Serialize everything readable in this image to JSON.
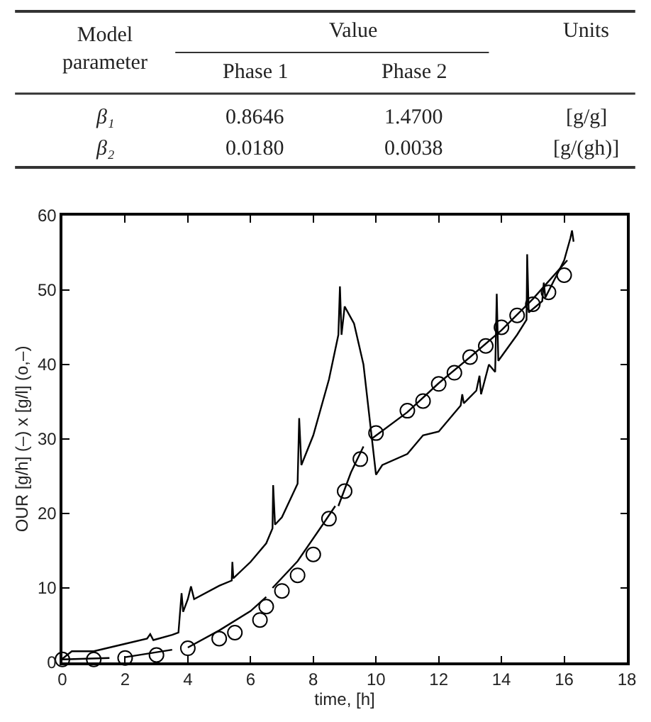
{
  "chart_data": [
    {
      "type": "other",
      "annotations": [
        "Model\nparameter",
        "Value",
        "Units",
        "Phase 1",
        "Phase 2",
        "β₁",
        "0.8646",
        "1.4700",
        "[g/g]",
        "β₂",
        "0.0180",
        "0.0038",
        "[g/(gh)]"
      ]
    },
    {
      "type": "line",
      "xlabel": "time, [h]",
      "ylabel": "OUR [g/h] (–) x [g/l] (o,–)",
      "xlim": [
        0,
        18
      ],
      "xticks": [
        0,
        2,
        4,
        6,
        8,
        10,
        12,
        14,
        16,
        18
      ],
      "ylim": [
        0,
        60
      ],
      "yticks": [
        0,
        10,
        20,
        30,
        40,
        50,
        60
      ],
      "series": [
        {
          "type": "line",
          "color": "#000000",
          "x": [
            0,
            0.3,
            1,
            2,
            2.7,
            2.8,
            2.9,
            3.5,
            3.7,
            3.8,
            3.85,
            4.0,
            4.1,
            4.2,
            5,
            5.4,
            5.42,
            5.45,
            6,
            6.5,
            6.7,
            6.72,
            6.78,
            7,
            7.5,
            7.55,
            7.62,
            8,
            8.5,
            8.8,
            8.85,
            8.9,
            9.0,
            9.3,
            9.6,
            10.0,
            10.2,
            11,
            11.5,
            12,
            12.7,
            12.75,
            12.8,
            13.2,
            13.3,
            13.35,
            13.6,
            13.8,
            13.85,
            13.9,
            14.5,
            14.8,
            14.82,
            14.87,
            15.3,
            15.35,
            15.4,
            16,
            16.2,
            16.25,
            16.3
          ],
          "values": [
            0.5,
            1.5,
            1.5,
            2.5,
            3.2,
            3.8,
            3.0,
            3.7,
            4,
            9.3,
            6.8,
            8.5,
            10.2,
            8.5,
            10.3,
            11,
            13.5,
            11.3,
            13.5,
            16,
            18,
            23.8,
            18.5,
            19.5,
            24,
            32.8,
            26.5,
            30.5,
            38,
            44,
            50.5,
            44,
            47.8,
            45.5,
            40,
            25.2,
            26.5,
            28,
            30.5,
            31,
            34.5,
            36,
            34.8,
            36.5,
            38.5,
            36,
            40,
            39,
            49.5,
            40.5,
            44,
            46,
            54.8,
            47,
            48.5,
            51,
            49,
            54,
            57,
            58,
            56.5
          ]
        },
        {
          "type": "scatter",
          "color": "#000000",
          "marker": "circle",
          "x": [
            0,
            1,
            2,
            3,
            4,
            5,
            5.5,
            6.3,
            6.5,
            7,
            7.5,
            8,
            8.5,
            9,
            9.5,
            10,
            11,
            11.5,
            12,
            12.5,
            13,
            13.5,
            14,
            14.5,
            15,
            15.5,
            16
          ],
          "values": [
            0.4,
            0.4,
            0.6,
            1,
            1.9,
            3.2,
            4,
            5.7,
            7.5,
            9.6,
            11.7,
            14.5,
            19.3,
            23,
            27.3,
            30.8,
            33.8,
            35.1,
            37.4,
            38.9,
            41,
            42.5,
            45,
            46.6,
            48.1,
            49.7,
            52
          ]
        },
        {
          "type": "line",
          "color": "#000000",
          "x": [
            0,
            1.5,
            null,
            2,
            3.5,
            null,
            4,
            5,
            6,
            6.5,
            null,
            6.7,
            7.5,
            8.3,
            8.7,
            null,
            8.8,
            9.2,
            9.6,
            null,
            9.85,
            11,
            12,
            13,
            14,
            15,
            16.1
          ],
          "values": [
            0.4,
            0.6,
            null,
            0.7,
            1.7,
            null,
            2,
            4.3,
            6.9,
            8.8,
            null,
            10,
            13.6,
            18.5,
            21,
            null,
            21,
            25.5,
            29,
            null,
            30,
            33.6,
            37.5,
            41,
            44.6,
            48.8,
            54
          ]
        }
      ]
    }
  ]
}
